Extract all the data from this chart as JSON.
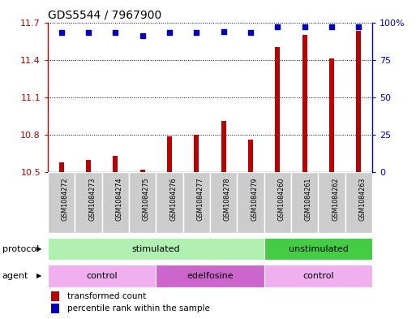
{
  "title": "GDS5544 / 7967900",
  "samples": [
    "GSM1084272",
    "GSM1084273",
    "GSM1084274",
    "GSM1084275",
    "GSM1084276",
    "GSM1084277",
    "GSM1084278",
    "GSM1084279",
    "GSM1084260",
    "GSM1084261",
    "GSM1084262",
    "GSM1084263"
  ],
  "bar_values": [
    10.58,
    10.6,
    10.63,
    10.52,
    10.79,
    10.8,
    10.91,
    10.76,
    11.5,
    11.6,
    11.41,
    11.63
  ],
  "dot_values": [
    93,
    93,
    93,
    91,
    93,
    93,
    94,
    93,
    97,
    97,
    97,
    97
  ],
  "bar_color": "#bb0000",
  "dot_color": "#0000bb",
  "ylim_left": [
    10.5,
    11.7
  ],
  "ylim_right": [
    0,
    100
  ],
  "yticks_left": [
    10.5,
    10.8,
    11.1,
    11.4,
    11.7
  ],
  "yticks_right": [
    0,
    25,
    50,
    75,
    100
  ],
  "ytick_labels_left": [
    "10.5",
    "10.8",
    "11.1",
    "11.4",
    "11.7"
  ],
  "ytick_labels_right": [
    "0",
    "25",
    "50",
    "75",
    "100%"
  ],
  "protocol_stim_color": "#b0f0b0",
  "protocol_unstim_color": "#44cc44",
  "agent_ctrl_color": "#f0b0f0",
  "agent_edel_color": "#cc66cc",
  "base_value": 10.5,
  "bar_width": 0.18,
  "legend_bar_label": "transformed count",
  "legend_dot_label": "percentile rank within the sample",
  "sample_box_color": "#cccccc",
  "sample_box_edge_color": "#ffffff"
}
